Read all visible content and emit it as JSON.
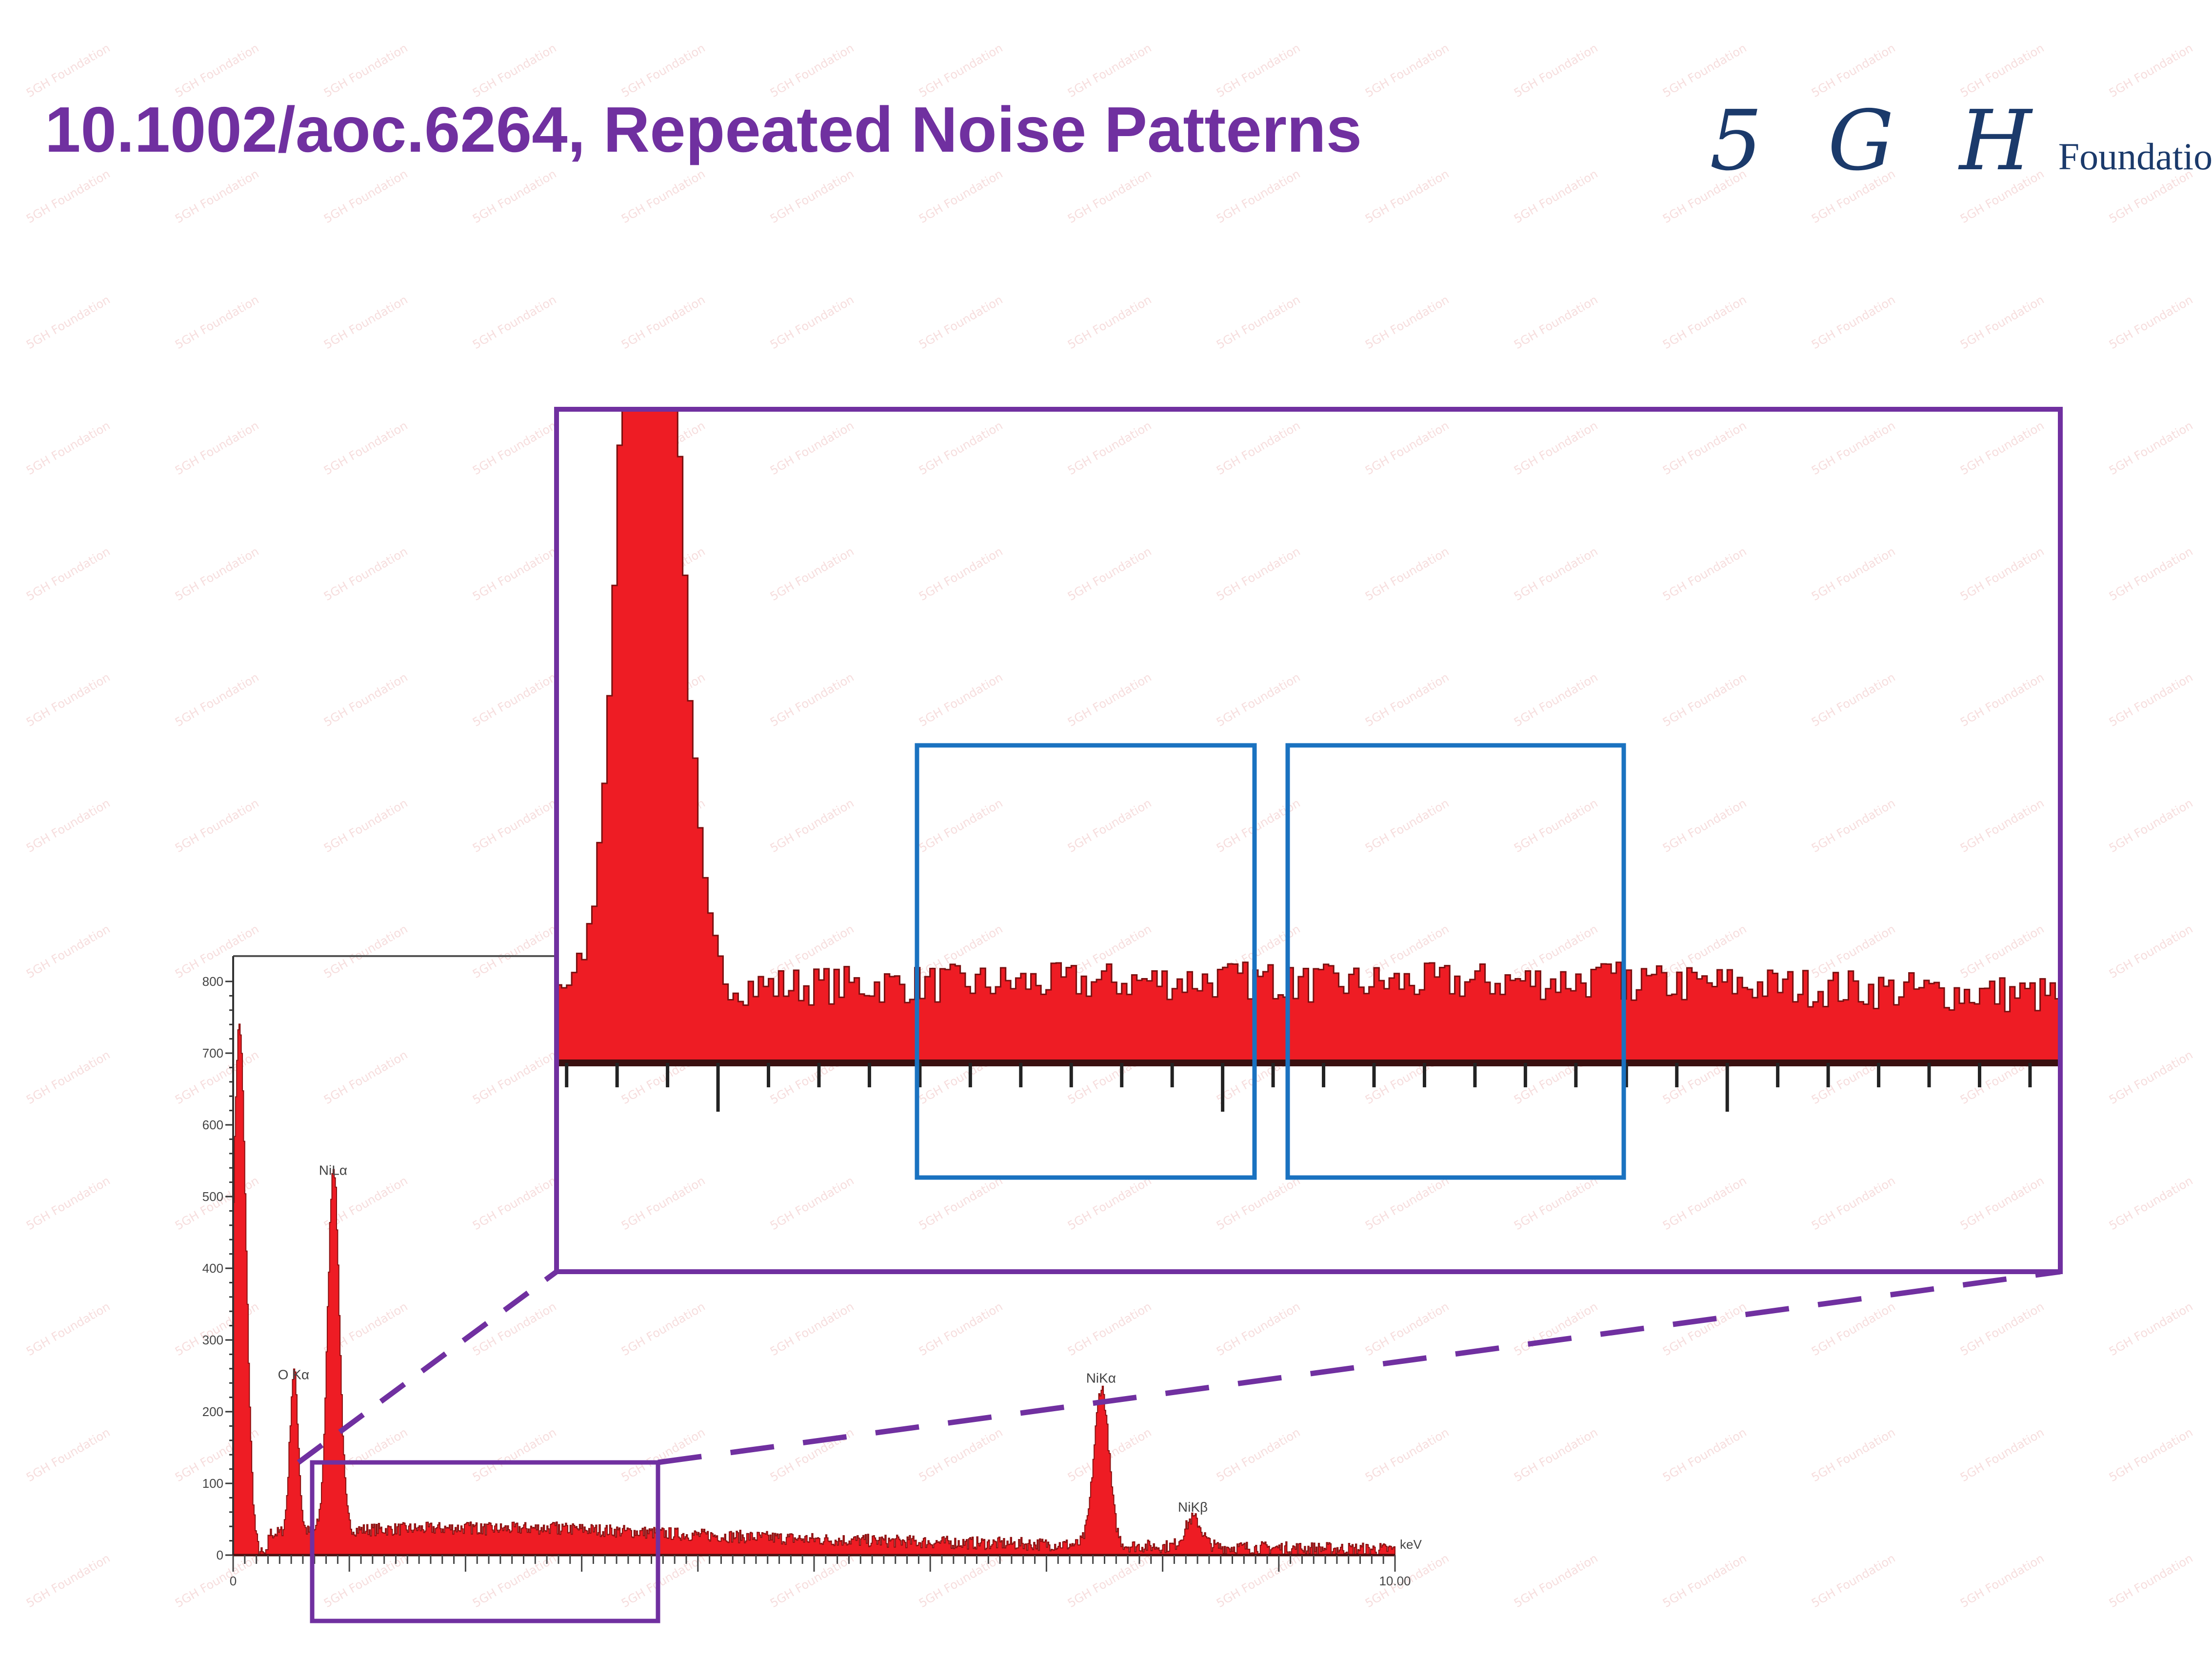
{
  "title": "10.1002/aoc.6264, Repeated Noise Patterns",
  "logo": {
    "monogram": "5 G H",
    "word": "Foundation"
  },
  "watermark": "5GH Foundation",
  "colors": {
    "title": "#7030a0",
    "highlight_box": "#7030a0",
    "repeat_box": "#1a72c0",
    "spectrum_fill": "#ee1c24",
    "logo": "#1b3a6b"
  },
  "chart_data": {
    "type": "area",
    "xlabel": "keV",
    "xlim": [
      0,
      10
    ],
    "ylim": [
      0,
      800
    ],
    "y_ticks": [
      0,
      100,
      200,
      300,
      400,
      500,
      600,
      700,
      800
    ],
    "y_tick_labels": [
      "0",
      "100",
      "200",
      "300",
      "400",
      "500",
      "600",
      "700",
      "800"
    ],
    "x_tick_labels": [
      "0",
      "10.00"
    ],
    "x_major_tick_step": 1,
    "x_minor_tick_step": 0.1,
    "background_counts": {
      "x": [
        0.3,
        1,
        2,
        3,
        4,
        5,
        6,
        7,
        8,
        9,
        10
      ],
      "y": [
        30,
        35,
        38,
        36,
        28,
        22,
        18,
        15,
        12,
        10,
        8
      ]
    },
    "peaks": [
      {
        "label": "",
        "energy": 0.05,
        "counts": 740
      },
      {
        "label": "O Kα",
        "energy": 0.52,
        "counts": 225
      },
      {
        "label": "NiLα",
        "energy": 0.86,
        "counts": 510
      },
      {
        "label": "NiKα",
        "energy": 7.47,
        "counts": 220
      },
      {
        "label": "NiKβ",
        "energy": 8.26,
        "counts": 40
      }
    ],
    "zoom_region_kev": [
      0.68,
      3.66
    ],
    "repeated_windows_kev": [
      [
        1.39,
        2.06
      ],
      [
        2.13,
        2.8
      ]
    ]
  }
}
